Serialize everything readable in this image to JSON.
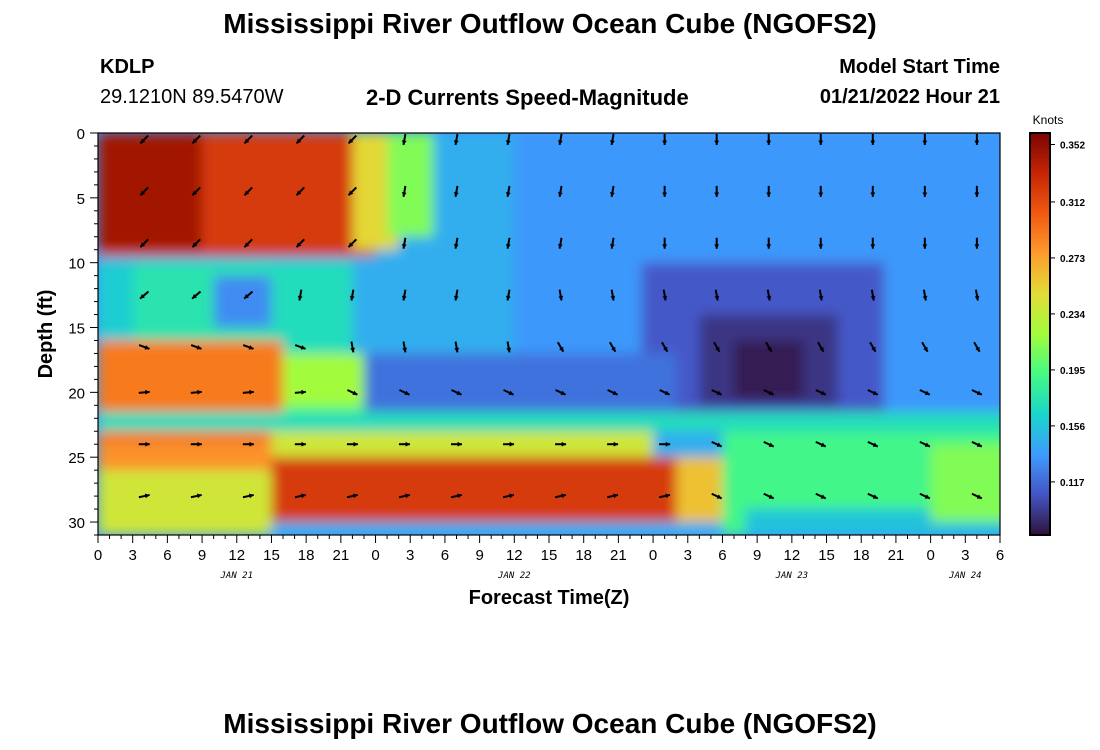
{
  "header": {
    "title": "Mississippi River Outflow Ocean Cube (NGOFS2)",
    "station_id": "KDLP",
    "coordinates": "29.1210N  89.5470W",
    "subtitle": "2-D Currents Speed-Magnitude",
    "model_start_label": "Model Start Time",
    "model_start_value": "01/21/2022 Hour 21",
    "bottom_title": "Mississippi River Outflow Ocean Cube (NGOFS2)"
  },
  "chart_data": {
    "type": "heatmap",
    "title": "2-D Currents Speed-Magnitude",
    "xlabel": "Forecast Time(Z)",
    "ylabel": "Depth (ft)",
    "x_range_hours": [
      0,
      78
    ],
    "y_range_ft": [
      0,
      31
    ],
    "y_ticks": [
      "0",
      "5",
      "10",
      "15",
      "20",
      "25",
      "30"
    ],
    "x_ticks": [
      "0",
      "3",
      "6",
      "9",
      "12",
      "15",
      "18",
      "21",
      "0",
      "3",
      "6",
      "9",
      "12",
      "15",
      "18",
      "21",
      "0",
      "3",
      "6",
      "9",
      "12",
      "15",
      "18",
      "21",
      "0",
      "3",
      "6"
    ],
    "date_labels": [
      {
        "text": "JAN 21",
        "hour": 12
      },
      {
        "text": "JAN 22",
        "hour": 36
      },
      {
        "text": "JAN 23",
        "hour": 60
      },
      {
        "text": "JAN 24",
        "hour": 75
      }
    ],
    "colorbar": {
      "units": "Knots",
      "range": [
        0.08,
        0.36
      ],
      "ticks": [
        "0.352",
        "0.312",
        "0.273",
        "0.234",
        "0.195",
        "0.156",
        "0.117"
      ],
      "colors": [
        "#30123b",
        "#4454c4",
        "#3e9bfe",
        "#18d6cb",
        "#46f884",
        "#a2fc3c",
        "#e1dd37",
        "#fe9b2d",
        "#ef5911",
        "#c42503",
        "#7a0403"
      ]
    },
    "arrow_depths_ft": [
      0.5,
      4.5,
      8.5,
      12.5,
      16.5,
      20,
      24,
      28
    ],
    "arrow_hours": [
      4,
      8.5,
      13,
      17.5,
      22,
      26.5,
      31,
      35.5,
      40,
      44.5,
      49,
      53.5,
      58,
      62.5,
      67,
      71.5,
      76
    ]
  }
}
